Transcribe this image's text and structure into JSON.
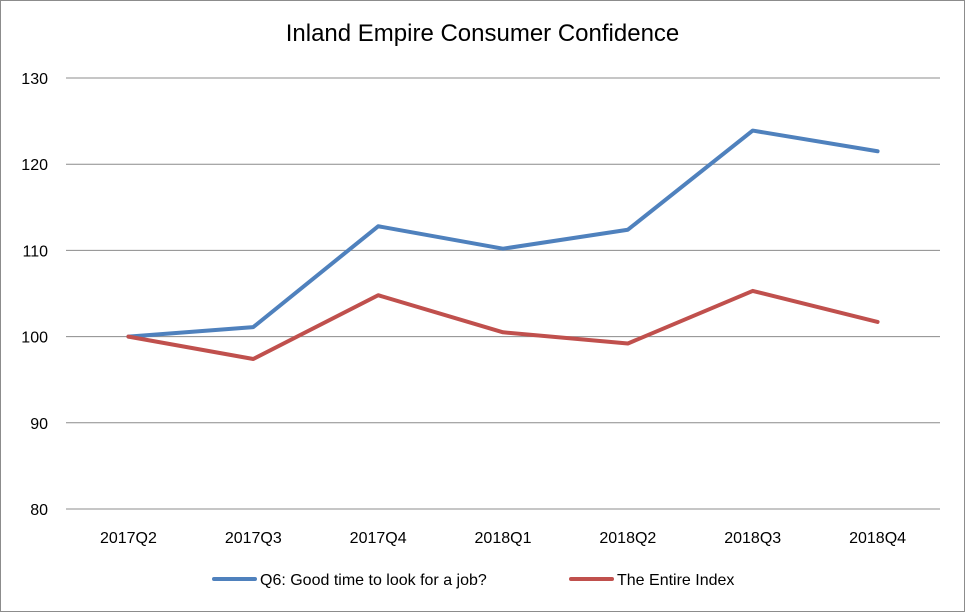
{
  "chart_data": {
    "type": "line",
    "title": "Inland Empire Consumer Confidence",
    "categories": [
      "2017Q2",
      "2017Q3",
      "2017Q4",
      "2018Q1",
      "2018Q2",
      "2018Q3",
      "2018Q4"
    ],
    "ylim": [
      80,
      130
    ],
    "yticks": [
      80,
      90,
      100,
      110,
      120,
      130
    ],
    "grid": true,
    "legend_position": "bottom",
    "series": [
      {
        "name": "Q6: Good time to look for a job?",
        "color": "#4f81bd",
        "values": [
          100,
          101.1,
          112.8,
          110.2,
          112.4,
          123.9,
          121.5
        ]
      },
      {
        "name": "The Entire Index",
        "color": "#c0504d",
        "values": [
          100,
          97.4,
          104.8,
          100.5,
          99.2,
          105.3,
          101.7
        ]
      }
    ]
  }
}
